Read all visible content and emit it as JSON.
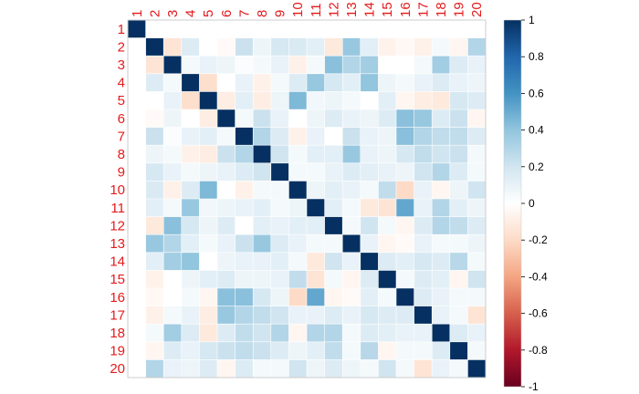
{
  "chart_data": {
    "type": "heatmap",
    "title": "",
    "xlabel": "",
    "ylabel": "",
    "variables": [
      "1",
      "2",
      "3",
      "4",
      "5",
      "6",
      "7",
      "8",
      "9",
      "10",
      "11",
      "12",
      "13",
      "14",
      "15",
      "16",
      "17",
      "18",
      "19",
      "20"
    ],
    "label_color": "#e41a1c",
    "colorbar": {
      "min": -1,
      "max": 1,
      "ticks": [
        "1",
        "0.8",
        "0.6",
        "0.4",
        "0.2",
        "0",
        "-0.2",
        "-0.4",
        "-0.6",
        "-0.8",
        "-1"
      ],
      "colors": [
        "#67001f",
        "#b2182b",
        "#d6604d",
        "#f4a582",
        "#fddbc7",
        "#ffffff",
        "#d1e5f0",
        "#92c5de",
        "#4393c3",
        "#2166ac",
        "#053061"
      ]
    },
    "matrix": [
      [
        1.0,
        0.0,
        0.0,
        0.0,
        0.0,
        0.0,
        0.0,
        0.0,
        0.0,
        0.0,
        0.0,
        0.0,
        0.0,
        0.0,
        0.0,
        0.0,
        0.0,
        0.0,
        0.0,
        0.0
      ],
      [
        0.0,
        1.0,
        -0.15,
        0.15,
        0.0,
        -0.03,
        0.22,
        0.08,
        0.18,
        0.16,
        0.12,
        -0.12,
        0.38,
        0.12,
        -0.07,
        -0.04,
        -0.08,
        0.05,
        -0.05,
        0.3
      ],
      [
        0.0,
        -0.15,
        1.0,
        0.05,
        0.1,
        0.08,
        0.02,
        0.05,
        0.1,
        -0.08,
        0.05,
        0.42,
        0.3,
        0.35,
        0.0,
        0.0,
        0.05,
        0.35,
        0.15,
        0.1
      ],
      [
        0.0,
        0.15,
        0.05,
        1.0,
        -0.18,
        0.0,
        0.1,
        -0.08,
        0.05,
        0.15,
        0.38,
        0.18,
        0.12,
        0.4,
        0.08,
        0.05,
        0.1,
        0.15,
        0.1,
        0.08
      ],
      [
        0.0,
        0.0,
        0.1,
        -0.18,
        1.0,
        -0.1,
        0.12,
        -0.1,
        0.08,
        0.45,
        0.06,
        0.08,
        0.05,
        0.0,
        0.12,
        -0.05,
        -0.1,
        -0.12,
        0.18,
        0.15
      ],
      [
        0.0,
        -0.03,
        0.08,
        0.0,
        -0.1,
        1.0,
        0.05,
        0.22,
        0.1,
        0.0,
        0.08,
        0.15,
        0.1,
        0.08,
        0.15,
        0.42,
        0.38,
        0.15,
        0.22,
        -0.05
      ],
      [
        0.0,
        0.22,
        0.02,
        0.1,
        0.12,
        0.05,
        1.0,
        0.3,
        0.15,
        -0.08,
        0.1,
        0.0,
        0.22,
        0.1,
        0.08,
        0.42,
        0.3,
        0.25,
        0.25,
        0.15
      ],
      [
        0.0,
        0.08,
        0.05,
        -0.08,
        -0.1,
        0.22,
        0.3,
        1.0,
        0.2,
        0.05,
        0.12,
        0.12,
        0.38,
        0.1,
        0.08,
        0.18,
        0.25,
        0.2,
        0.22,
        0.05
      ],
      [
        0.0,
        0.18,
        0.1,
        0.05,
        0.08,
        0.1,
        0.15,
        0.2,
        1.0,
        0.05,
        0.05,
        0.1,
        0.15,
        0.12,
        0.1,
        0.08,
        0.2,
        0.3,
        0.15,
        0.05
      ],
      [
        0.0,
        0.16,
        -0.08,
        0.15,
        0.45,
        0.0,
        -0.08,
        0.05,
        0.05,
        1.0,
        0.08,
        0.12,
        0.1,
        0.05,
        0.25,
        -0.2,
        0.1,
        -0.05,
        0.08,
        0.2
      ],
      [
        0.0,
        0.12,
        0.05,
        0.38,
        0.06,
        0.08,
        0.1,
        0.12,
        0.05,
        0.08,
        1.0,
        0.12,
        0.05,
        -0.12,
        -0.15,
        0.52,
        0.1,
        0.3,
        0.12,
        0.08
      ],
      [
        0.0,
        -0.12,
        0.42,
        0.18,
        0.08,
        0.15,
        0.0,
        0.12,
        0.1,
        0.12,
        0.12,
        1.0,
        0.05,
        0.2,
        0.05,
        -0.05,
        0.15,
        0.3,
        0.25,
        0.15
      ],
      [
        0.0,
        0.38,
        0.3,
        0.12,
        0.05,
        0.1,
        0.22,
        0.38,
        0.15,
        0.1,
        0.05,
        0.05,
        1.0,
        0.1,
        -0.05,
        -0.03,
        0.1,
        0.05,
        0.05,
        0.08
      ],
      [
        0.0,
        0.12,
        0.35,
        0.4,
        0.0,
        0.08,
        0.1,
        0.1,
        0.12,
        0.05,
        -0.12,
        0.2,
        0.1,
        1.0,
        0.15,
        0.12,
        0.18,
        0.15,
        0.28,
        0.05
      ],
      [
        0.0,
        -0.07,
        0.0,
        0.08,
        0.12,
        0.15,
        0.08,
        0.08,
        0.1,
        0.25,
        -0.15,
        0.05,
        -0.05,
        0.15,
        1.0,
        0.05,
        0.15,
        0.12,
        -0.05,
        0.2
      ],
      [
        0.0,
        -0.04,
        0.0,
        0.05,
        -0.05,
        0.42,
        0.42,
        0.18,
        0.08,
        -0.2,
        0.52,
        -0.05,
        -0.03,
        0.12,
        0.05,
        1.0,
        0.15,
        0.1,
        0.05,
        0.05
      ],
      [
        0.0,
        -0.08,
        0.05,
        0.1,
        -0.1,
        0.38,
        0.3,
        0.25,
        0.2,
        0.1,
        0.1,
        0.15,
        0.1,
        0.18,
        0.15,
        0.15,
        1.0,
        0.1,
        0.05,
        -0.15
      ],
      [
        0.0,
        0.05,
        0.35,
        0.15,
        -0.12,
        0.15,
        0.25,
        0.2,
        0.3,
        -0.05,
        0.3,
        0.3,
        0.05,
        0.15,
        0.12,
        0.1,
        0.1,
        1.0,
        0.15,
        0.1
      ],
      [
        0.0,
        -0.05,
        0.15,
        0.1,
        0.18,
        0.22,
        0.25,
        0.22,
        0.15,
        0.08,
        0.12,
        0.25,
        0.05,
        0.28,
        -0.05,
        0.05,
        0.05,
        0.15,
        1.0,
        0.05
      ],
      [
        0.0,
        0.3,
        0.1,
        0.08,
        0.15,
        -0.05,
        0.15,
        0.05,
        0.05,
        0.2,
        0.08,
        0.15,
        0.08,
        0.05,
        0.2,
        0.05,
        -0.15,
        0.1,
        0.05,
        1.0
      ]
    ]
  }
}
